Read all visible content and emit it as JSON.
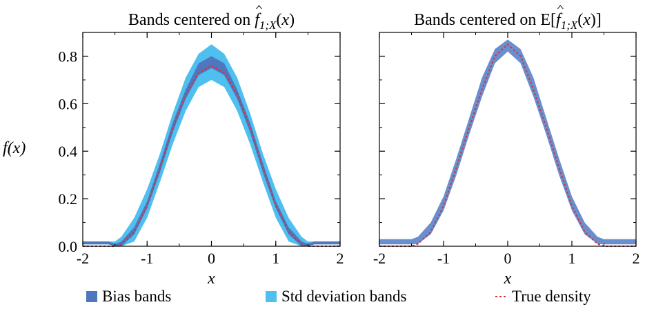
{
  "chart_data": [
    {
      "type": "area",
      "title_text": "Bands centered on ",
      "title_estimator": "f",
      "title_subscript": "1;X",
      "title_arg": "(x)",
      "title_wrap_open": "",
      "title_wrap_close": "",
      "xlabel": "x",
      "ylabel": "f(x)",
      "xlim": [
        -2,
        2
      ],
      "ylim": [
        0,
        0.9
      ],
      "x_ticks": [
        -2,
        -1,
        0,
        1,
        2
      ],
      "x_tick_labels": [
        "-2",
        "-1",
        "0",
        "1",
        "2"
      ],
      "y_ticks": [
        0.0,
        0.2,
        0.4,
        0.6,
        0.8
      ],
      "y_tick_labels": [
        "0.0",
        "0.2",
        "0.4",
        "0.6",
        "0.8"
      ],
      "x": [
        -2.0,
        -1.8,
        -1.6,
        -1.5,
        -1.4,
        -1.2,
        -1.0,
        -0.8,
        -0.6,
        -0.4,
        -0.2,
        0.0,
        0.2,
        0.4,
        0.6,
        0.8,
        1.0,
        1.2,
        1.4,
        1.5,
        1.6,
        1.8,
        2.0
      ],
      "series": [
        {
          "name": "Std deviation bands",
          "color": "#4fbfef",
          "lower": [
            0.008,
            0.008,
            0.008,
            0.0,
            0.0,
            0.02,
            0.12,
            0.27,
            0.43,
            0.57,
            0.67,
            0.7,
            0.67,
            0.57,
            0.43,
            0.27,
            0.12,
            0.02,
            0.0,
            0.0,
            0.008,
            0.008,
            0.008
          ],
          "upper": [
            0.02,
            0.02,
            0.02,
            0.02,
            0.04,
            0.12,
            0.24,
            0.39,
            0.56,
            0.71,
            0.81,
            0.85,
            0.81,
            0.71,
            0.56,
            0.39,
            0.24,
            0.12,
            0.04,
            0.02,
            0.02,
            0.02,
            0.02
          ]
        },
        {
          "name": "Bias bands",
          "color": "#4d78bf",
          "lower": [
            0.008,
            0.008,
            0.008,
            0.0,
            0.0,
            0.05,
            0.16,
            0.31,
            0.48,
            0.62,
            0.72,
            0.75,
            0.72,
            0.62,
            0.48,
            0.31,
            0.16,
            0.05,
            0.0,
            0.0,
            0.008,
            0.008,
            0.008
          ],
          "upper": [
            0.02,
            0.02,
            0.02,
            0.01,
            0.02,
            0.08,
            0.19,
            0.35,
            0.52,
            0.66,
            0.77,
            0.8,
            0.77,
            0.66,
            0.52,
            0.35,
            0.19,
            0.08,
            0.02,
            0.01,
            0.02,
            0.02,
            0.02
          ]
        },
        {
          "name": "True density",
          "color": "#d0353f",
          "style": "dotted",
          "values": [
            0.0,
            0.0,
            0.0,
            0.0,
            0.01,
            0.06,
            0.17,
            0.33,
            0.5,
            0.64,
            0.73,
            0.76,
            0.73,
            0.64,
            0.5,
            0.33,
            0.17,
            0.06,
            0.01,
            0.0,
            0.0,
            0.0,
            0.0
          ]
        }
      ]
    },
    {
      "type": "area",
      "title_text": "Bands centered on E",
      "title_estimator": "f",
      "title_subscript": "1;X",
      "title_arg": "(x)",
      "title_wrap_open": "[",
      "title_wrap_close": "]",
      "xlabel": "x",
      "ylabel": "",
      "xlim": [
        -2,
        2
      ],
      "ylim": [
        0,
        0.9
      ],
      "x_ticks": [
        -2,
        -1,
        0,
        1,
        2
      ],
      "x_tick_labels": [
        "-2",
        "-1",
        "0",
        "1",
        "2"
      ],
      "y_ticks": [
        0.0,
        0.2,
        0.4,
        0.6,
        0.8
      ],
      "y_tick_labels": [],
      "x": [
        -2.0,
        -1.8,
        -1.6,
        -1.5,
        -1.4,
        -1.2,
        -1.0,
        -0.8,
        -0.6,
        -0.4,
        -0.2,
        0.0,
        0.2,
        0.4,
        0.6,
        0.8,
        1.0,
        1.2,
        1.4,
        1.5,
        1.6,
        1.8,
        2.0
      ],
      "series": [
        {
          "name": "Bias bands",
          "color": "#6a8fcf",
          "lower": [
            0.008,
            0.008,
            0.008,
            0.008,
            0.01,
            0.05,
            0.15,
            0.3,
            0.47,
            0.63,
            0.77,
            0.82,
            0.77,
            0.63,
            0.47,
            0.3,
            0.15,
            0.05,
            0.01,
            0.008,
            0.008,
            0.008,
            0.008
          ],
          "upper": [
            0.03,
            0.03,
            0.03,
            0.03,
            0.04,
            0.1,
            0.21,
            0.37,
            0.54,
            0.71,
            0.83,
            0.87,
            0.83,
            0.71,
            0.54,
            0.37,
            0.21,
            0.1,
            0.04,
            0.03,
            0.03,
            0.03,
            0.03
          ]
        },
        {
          "name": "True density",
          "color": "#d0353f",
          "style": "dotted",
          "values": [
            0.0,
            0.0,
            0.0,
            0.0,
            0.01,
            0.06,
            0.17,
            0.33,
            0.5,
            0.66,
            0.8,
            0.85,
            0.8,
            0.66,
            0.5,
            0.33,
            0.17,
            0.06,
            0.01,
            0.0,
            0.0,
            0.0,
            0.0
          ]
        }
      ]
    }
  ],
  "legend": {
    "placement": "bottom",
    "items": [
      {
        "label": "Bias bands",
        "color": "#4d78bf",
        "marker": "square"
      },
      {
        "label": "Std deviation bands",
        "color": "#4fbfef",
        "marker": "square"
      },
      {
        "label": "True density",
        "color": "#d0353f",
        "marker": "dotted-line"
      }
    ]
  }
}
